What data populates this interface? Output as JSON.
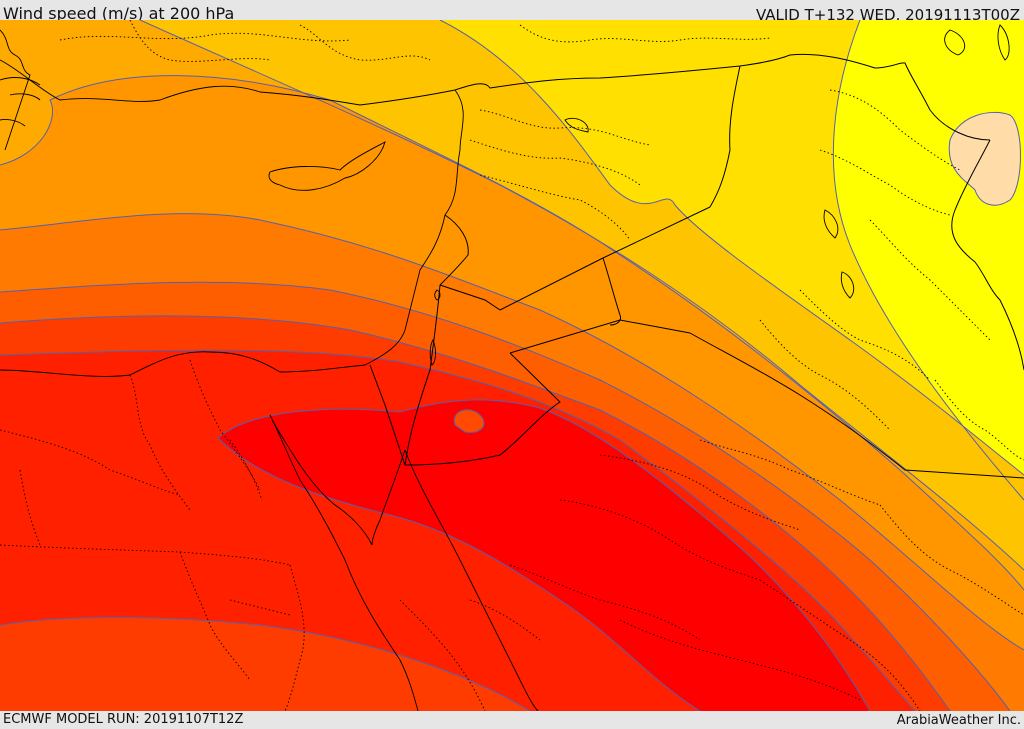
{
  "header": {
    "title": "Wind speed (m/s) at 200 hPa",
    "valid": "VALID T+132 WED. 20191113T00Z"
  },
  "footer": {
    "model_run": "ECMWF MODEL RUN: 20191107T12Z",
    "credit": "ArabiaWeather Inc."
  },
  "map": {
    "variable": "wind speed",
    "units": "m/s",
    "level": "200 hPa",
    "region": "Eastern Mediterranean / Middle East",
    "palette": [
      "#ffff00",
      "#ffe000",
      "#ffc400",
      "#ffaa00",
      "#ff9600",
      "#ff7a00",
      "#ff5e00",
      "#ff3c00",
      "#ff2000",
      "#ff0000"
    ],
    "low_speed_patch_color": "#ffdca8",
    "contour_color": "#5560b0",
    "border_color": "#000000"
  }
}
